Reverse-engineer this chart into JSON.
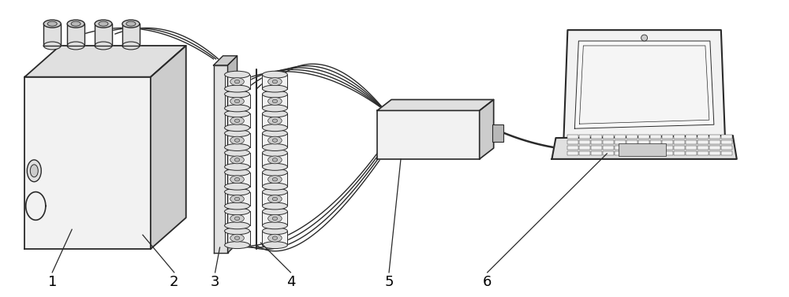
{
  "fig_width": 10.0,
  "fig_height": 3.77,
  "bg_color": "#ffffff",
  "line_color": "#2a2a2a",
  "label_color": "#000000",
  "label_fontsize": 13,
  "fill_light": "#f2f2f2",
  "fill_mid": "#e0e0e0",
  "fill_dark": "#cccccc",
  "fill_darker": "#b8b8b8"
}
